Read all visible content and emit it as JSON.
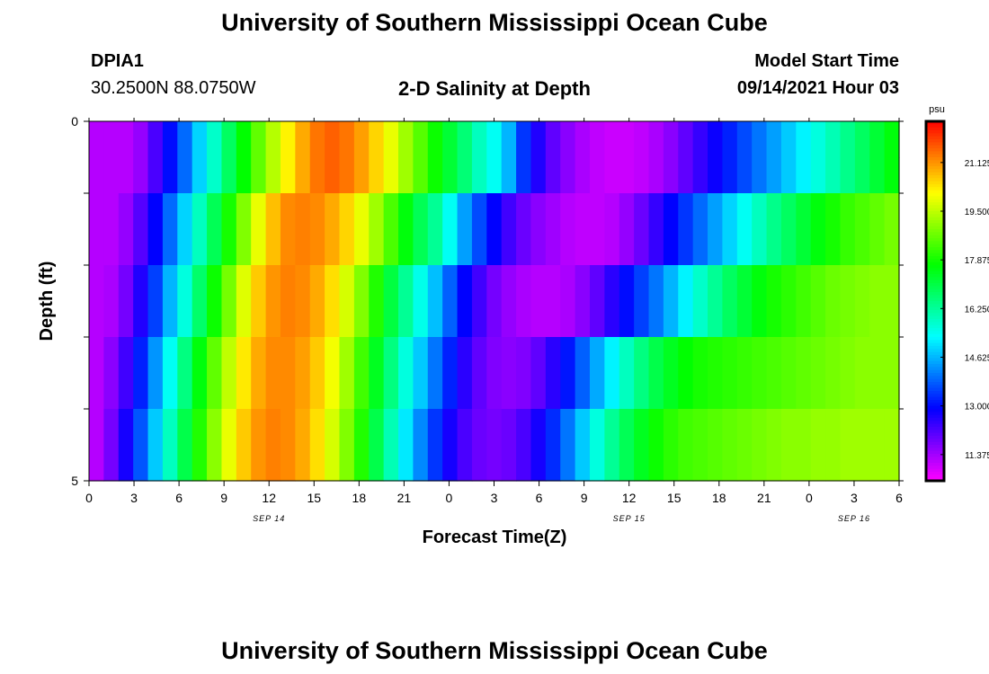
{
  "header": {
    "title_top": "University of Southern Mississippi Ocean Cube",
    "title_bottom": "University of Southern Mississippi Ocean Cube",
    "station": "DPIA1",
    "coords": "30.2500N  88.0750W",
    "plot_title": "2-D Salinity at Depth",
    "model_label": "Model Start Time",
    "model_time": "09/14/2021 Hour 03"
  },
  "chart_data": {
    "type": "heatmap",
    "title": "2-D Salinity at Depth",
    "xlabel": "Forecast Time(Z)",
    "ylabel": "Depth (ft)",
    "x_tick_labels": [
      "0",
      "3",
      "6",
      "9",
      "12",
      "15",
      "18",
      "21",
      "0",
      "3",
      "6",
      "9",
      "12",
      "15",
      "18",
      "21",
      "0",
      "3",
      "6"
    ],
    "date_labels": [
      {
        "text": "SEP 14",
        "hour_index": 12
      },
      {
        "text": "SEP 15",
        "hour_index": 36
      },
      {
        "text": "SEP 16",
        "hour_index": 51
      }
    ],
    "y_tick_labels": [
      "0",
      "5"
    ],
    "ylim": [
      0,
      5
    ],
    "colorbar": {
      "unit": "psu",
      "labels": [
        "21.125",
        "19.500",
        "17.875",
        "16.250",
        "14.625",
        "13.000",
        "11.375"
      ],
      "range": [
        10.5,
        22.5
      ]
    },
    "hours": [
      0,
      1,
      2,
      3,
      4,
      5,
      6,
      7,
      8,
      9,
      10,
      11,
      12,
      13,
      14,
      15,
      16,
      17,
      18,
      19,
      20,
      21,
      22,
      23,
      24,
      25,
      26,
      27,
      28,
      29,
      30,
      31,
      32,
      33,
      34,
      35,
      36,
      37,
      38,
      39,
      40,
      41,
      42,
      43,
      44,
      45,
      46,
      47,
      48,
      49,
      50,
      51,
      52,
      53,
      54
    ],
    "depth_layers": [
      {
        "depth_top": 0,
        "depth_bottom": 0.5,
        "values": [
          11.2,
          11.2,
          11.2,
          11.5,
          12.2,
          13.0,
          13.9,
          14.9,
          15.8,
          16.8,
          17.7,
          18.6,
          19.4,
          20.2,
          20.9,
          21.4,
          21.6,
          21.4,
          21.0,
          20.5,
          19.9,
          19.2,
          18.5,
          17.8,
          17.2,
          16.6,
          15.9,
          15.4,
          14.6,
          13.4,
          12.6,
          12.0,
          11.6,
          11.3,
          11.1,
          11.0,
          11.0,
          11.1,
          11.3,
          11.6,
          12.0,
          12.4,
          12.8,
          13.2,
          13.6,
          14.0,
          14.4,
          14.8,
          15.2,
          15.6,
          16.0,
          16.4,
          16.8,
          17.2,
          17.6
        ]
      },
      {
        "depth_top": 0.5,
        "depth_bottom": 1.0,
        "values": [
          11.2,
          11.2,
          11.2,
          11.5,
          12.2,
          13.0,
          13.9,
          14.9,
          15.8,
          16.8,
          17.7,
          18.6,
          19.4,
          20.2,
          20.9,
          21.4,
          21.6,
          21.4,
          21.0,
          20.5,
          19.9,
          19.2,
          18.5,
          17.8,
          17.2,
          16.6,
          15.9,
          15.4,
          14.6,
          13.4,
          12.6,
          12.0,
          11.6,
          11.3,
          11.1,
          11.0,
          11.0,
          11.1,
          11.3,
          11.6,
          12.0,
          12.4,
          12.8,
          13.2,
          13.6,
          14.0,
          14.4,
          14.8,
          15.2,
          15.6,
          16.0,
          16.4,
          16.8,
          17.2,
          17.6
        ]
      },
      {
        "depth_top": 1.0,
        "depth_bottom": 2.0,
        "values": [
          11.2,
          11.2,
          11.5,
          12.1,
          12.9,
          13.9,
          14.9,
          15.9,
          16.9,
          17.9,
          18.9,
          19.9,
          20.7,
          21.2,
          21.3,
          21.2,
          20.9,
          20.5,
          19.9,
          19.2,
          18.4,
          17.6,
          16.9,
          16.3,
          15.4,
          14.4,
          13.6,
          12.9,
          12.3,
          11.9,
          11.6,
          11.4,
          11.2,
          11.1,
          11.1,
          11.2,
          11.5,
          11.9,
          12.4,
          12.9,
          13.4,
          13.9,
          14.4,
          14.9,
          15.4,
          15.9,
          16.4,
          16.8,
          17.2,
          17.6,
          17.9,
          18.2,
          18.4,
          18.6,
          18.8
        ]
      },
      {
        "depth_top": 2.0,
        "depth_bottom": 3.0,
        "values": [
          11.2,
          11.3,
          11.8,
          12.6,
          13.5,
          14.6,
          15.6,
          16.7,
          17.8,
          18.8,
          19.8,
          20.6,
          21.1,
          21.3,
          21.2,
          20.9,
          20.4,
          19.7,
          18.9,
          18.0,
          17.1,
          16.3,
          15.5,
          14.7,
          13.8,
          12.9,
          12.3,
          11.8,
          11.5,
          11.3,
          11.2,
          11.2,
          11.3,
          11.6,
          12.0,
          12.5,
          13.0,
          13.5,
          14.0,
          14.6,
          15.2,
          15.8,
          16.3,
          16.8,
          17.2,
          17.6,
          17.9,
          18.1,
          18.3,
          18.5,
          18.7,
          18.8,
          18.9,
          19.0,
          19.0
        ]
      },
      {
        "depth_top": 3.0,
        "depth_bottom": 4.0,
        "values": [
          11.2,
          11.6,
          12.3,
          13.2,
          14.3,
          15.4,
          16.5,
          17.6,
          18.6,
          19.5,
          20.3,
          20.9,
          21.2,
          21.2,
          21.0,
          20.6,
          20.0,
          19.2,
          18.3,
          17.4,
          16.5,
          15.6,
          14.8,
          14.0,
          13.2,
          12.5,
          12.0,
          11.7,
          11.6,
          11.7,
          12.0,
          12.5,
          13.1,
          13.8,
          14.5,
          15.2,
          15.9,
          16.5,
          17.0,
          17.4,
          17.7,
          17.9,
          18.0,
          18.1,
          18.2,
          18.3,
          18.4,
          18.5,
          18.6,
          18.7,
          18.8,
          18.9,
          19.0,
          19.0,
          19.0
        ]
      },
      {
        "depth_top": 4.0,
        "depth_bottom": 5.0,
        "values": [
          11.2,
          11.8,
          12.7,
          13.7,
          14.8,
          15.9,
          17.0,
          18.0,
          19.0,
          19.9,
          20.6,
          21.1,
          21.3,
          21.2,
          20.9,
          20.4,
          19.7,
          18.9,
          18.0,
          17.0,
          16.0,
          15.1,
          14.2,
          13.4,
          12.7,
          12.2,
          11.9,
          11.8,
          11.9,
          12.2,
          12.7,
          13.3,
          14.0,
          14.8,
          15.6,
          16.3,
          16.9,
          17.4,
          17.8,
          18.1,
          18.3,
          18.4,
          18.5,
          18.6,
          18.7,
          18.8,
          18.9,
          19.0,
          19.0,
          19.1,
          19.1,
          19.2,
          19.2,
          19.2,
          19.2
        ]
      }
    ]
  }
}
